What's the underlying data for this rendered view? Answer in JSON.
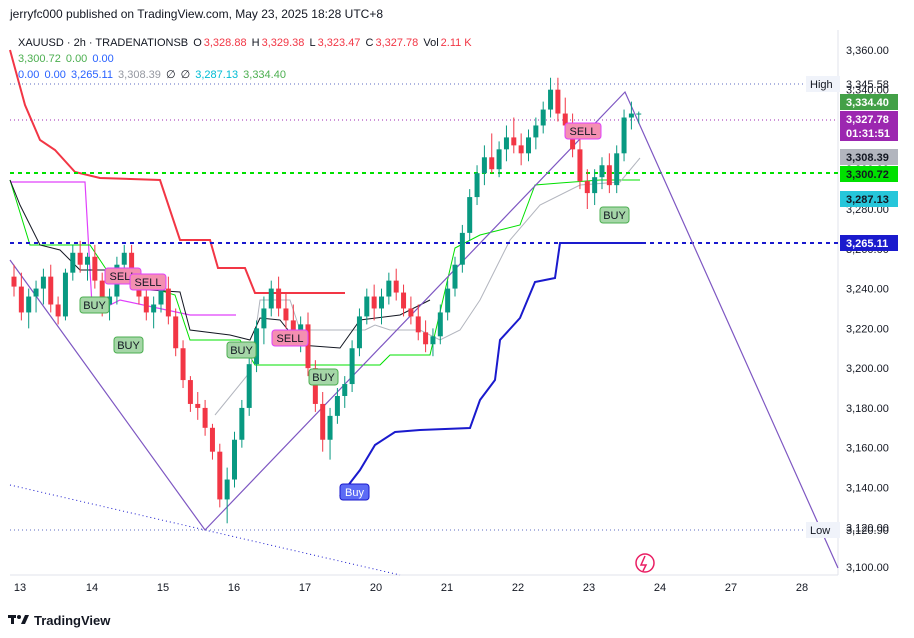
{
  "publisher": "jerryfc000 published on TradingView.com, May 23, 2025 18:28 UTC+8",
  "legend": {
    "symbol": "XAUUSD · 2h · TRADENATIONSB",
    "o_label": "O",
    "o_value": "3,328.88",
    "h_label": "H",
    "h_value": "3,329.38",
    "l_label": "L",
    "l_value": "3,323.47",
    "c_label": "C",
    "c_value": "3,327.78",
    "vol_label": "Vol",
    "vol_value": "2.11 K",
    "row2": [
      "3,300.72",
      "0.00",
      "0.00"
    ],
    "row3": [
      "0.00",
      "0.00",
      "3,265.11",
      "3,308.39",
      "∅",
      "∅",
      "3,287.13",
      "3,334.40"
    ]
  },
  "footer": {
    "brand": "TradingView"
  },
  "colors": {
    "up": "#089981",
    "down": "#f23645",
    "red_line": "#f23645",
    "green_line": "#00e000",
    "blue_line": "#1a1acd",
    "gray_line": "#b2b5be",
    "magenta": "#e040fb",
    "trend": "#7e57c2",
    "navy_dotted": "#1a1acd"
  },
  "chart_data": {
    "type": "candlestick",
    "symbol": "XAUUSD",
    "interval": "2h",
    "ylim": [
      3100,
      3370
    ],
    "yticks": [
      "3,100.00",
      "3,120.00",
      "3,140.00",
      "3,160.00",
      "3,180.00",
      "3,200.00",
      "3,220.00",
      "3,240.00",
      "3,260.00",
      "3,280.00",
      "3,300.00",
      "3,320.00",
      "3,340.00",
      "3,360.00"
    ],
    "yticks_values": [
      3100,
      3120,
      3140,
      3160,
      3180,
      3200,
      3220,
      3240,
      3260,
      3280,
      3300,
      3320,
      3340,
      3360
    ],
    "xticks": [
      "13",
      "14",
      "15",
      "16",
      "17",
      "20",
      "21",
      "22",
      "23",
      "24",
      "27",
      "28"
    ],
    "candles": [
      [
        3246,
        3252,
        3236,
        3241
      ],
      [
        3241,
        3248,
        3224,
        3228
      ],
      [
        3228,
        3240,
        3220,
        3236
      ],
      [
        3236,
        3244,
        3228,
        3240
      ],
      [
        3240,
        3250,
        3232,
        3246
      ],
      [
        3246,
        3252,
        3228,
        3232
      ],
      [
        3232,
        3236,
        3222,
        3226
      ],
      [
        3226,
        3250,
        3224,
        3248
      ],
      [
        3248,
        3262,
        3244,
        3258
      ],
      [
        3258,
        3264,
        3248,
        3252
      ],
      [
        3252,
        3258,
        3244,
        3256
      ],
      [
        3256,
        3262,
        3240,
        3244
      ],
      [
        3244,
        3248,
        3226,
        3232
      ],
      [
        3232,
        3240,
        3224,
        3236
      ],
      [
        3236,
        3256,
        3232,
        3252
      ],
      [
        3252,
        3262,
        3248,
        3258
      ],
      [
        3258,
        3262,
        3240,
        3244
      ],
      [
        3244,
        3250,
        3232,
        3236
      ],
      [
        3236,
        3246,
        3224,
        3228
      ],
      [
        3228,
        3236,
        3220,
        3232
      ],
      [
        3232,
        3244,
        3228,
        3240
      ],
      [
        3240,
        3246,
        3222,
        3226
      ],
      [
        3226,
        3230,
        3206,
        3210
      ],
      [
        3210,
        3214,
        3190,
        3194
      ],
      [
        3194,
        3196,
        3178,
        3182
      ],
      [
        3182,
        3188,
        3174,
        3180
      ],
      [
        3180,
        3184,
        3166,
        3170
      ],
      [
        3170,
        3172,
        3154,
        3158
      ],
      [
        3158,
        3162,
        3130,
        3134
      ],
      [
        3134,
        3150,
        3122,
        3144
      ],
      [
        3144,
        3168,
        3140,
        3164
      ],
      [
        3164,
        3184,
        3160,
        3180
      ],
      [
        3180,
        3206,
        3176,
        3202
      ],
      [
        3202,
        3224,
        3198,
        3220
      ],
      [
        3220,
        3236,
        3212,
        3230
      ],
      [
        3230,
        3244,
        3226,
        3240
      ],
      [
        3240,
        3246,
        3226,
        3230
      ],
      [
        3230,
        3238,
        3220,
        3224
      ],
      [
        3224,
        3232,
        3212,
        3216
      ],
      [
        3216,
        3226,
        3208,
        3222
      ],
      [
        3222,
        3228,
        3196,
        3200
      ],
      [
        3200,
        3204,
        3178,
        3182
      ],
      [
        3182,
        3188,
        3158,
        3164
      ],
      [
        3164,
        3180,
        3154,
        3176
      ],
      [
        3176,
        3190,
        3172,
        3186
      ],
      [
        3186,
        3196,
        3180,
        3192
      ],
      [
        3192,
        3214,
        3188,
        3210
      ],
      [
        3210,
        3230,
        3206,
        3226
      ],
      [
        3226,
        3240,
        3222,
        3236
      ],
      [
        3236,
        3242,
        3224,
        3230
      ],
      [
        3230,
        3240,
        3222,
        3236
      ],
      [
        3236,
        3248,
        3232,
        3244
      ],
      [
        3244,
        3250,
        3234,
        3238
      ],
      [
        3238,
        3242,
        3226,
        3230
      ],
      [
        3230,
        3236,
        3222,
        3226
      ],
      [
        3226,
        3232,
        3214,
        3218
      ],
      [
        3218,
        3224,
        3208,
        3212
      ],
      [
        3212,
        3220,
        3206,
        3216
      ],
      [
        3216,
        3232,
        3212,
        3228
      ],
      [
        3228,
        3244,
        3224,
        3240
      ],
      [
        3240,
        3256,
        3236,
        3252
      ],
      [
        3252,
        3272,
        3248,
        3268
      ],
      [
        3268,
        3290,
        3264,
        3286
      ],
      [
        3286,
        3302,
        3282,
        3298
      ],
      [
        3298,
        3312,
        3292,
        3306
      ],
      [
        3306,
        3318,
        3298,
        3300
      ],
      [
        3300,
        3314,
        3296,
        3310
      ],
      [
        3310,
        3322,
        3304,
        3316
      ],
      [
        3316,
        3326,
        3308,
        3312
      ],
      [
        3312,
        3318,
        3302,
        3308
      ],
      [
        3308,
        3320,
        3304,
        3316
      ],
      [
        3316,
        3326,
        3310,
        3322
      ],
      [
        3322,
        3334,
        3318,
        3330
      ],
      [
        3330,
        3346,
        3326,
        3340
      ],
      [
        3340,
        3346,
        3324,
        3328
      ],
      [
        3328,
        3336,
        3318,
        3322
      ],
      [
        3322,
        3328,
        3306,
        3310
      ],
      [
        3310,
        3318,
        3290,
        3294
      ],
      [
        3294,
        3300,
        3280,
        3288
      ],
      [
        3288,
        3300,
        3282,
        3296
      ],
      [
        3296,
        3306,
        3290,
        3302
      ],
      [
        3302,
        3308,
        3288,
        3292
      ],
      [
        3292,
        3312,
        3288,
        3308
      ],
      [
        3308,
        3330,
        3304,
        3326
      ],
      [
        3326,
        3334,
        3320,
        3328
      ],
      [
        3328,
        3329,
        3323,
        3328
      ]
    ],
    "candle_x_start": 14,
    "candle_x_step": 7.35,
    "signals": [
      {
        "label": "BUY",
        "kind": "buy"
      },
      {
        "label": "SELL",
        "kind": "sell"
      },
      {
        "label": "SELL",
        "kind": "sell"
      },
      {
        "label": "BUY",
        "kind": "buy"
      },
      {
        "label": "BUY",
        "kind": "buy"
      },
      {
        "label": "SELL",
        "kind": "sell"
      },
      {
        "label": "BUY",
        "kind": "buy"
      },
      {
        "label": "Buy",
        "kind": "buy_blue"
      },
      {
        "label": "SELL",
        "kind": "sell"
      },
      {
        "label": "BUY",
        "kind": "buy"
      }
    ],
    "price_labels": [
      {
        "text": "High",
        "value": "3,345.58",
        "kind": "text"
      },
      {
        "text": "",
        "value": "3,334.40",
        "kind": "green"
      },
      {
        "text": "",
        "value": "3,327.78",
        "kind": "purple"
      },
      {
        "text": "",
        "value": "01:31:51",
        "kind": "purple_sub"
      },
      {
        "text": "",
        "value": "3,308.39",
        "kind": "gray"
      },
      {
        "text": "",
        "value": "3,300.72",
        "kind": "lime"
      },
      {
        "text": "",
        "value": "3,287.13",
        "kind": "cyan"
      },
      {
        "text": "",
        "value": "3,265.11",
        "kind": "blue"
      },
      {
        "text": "Low",
        "value": "3,120.90",
        "kind": "text"
      }
    ]
  }
}
